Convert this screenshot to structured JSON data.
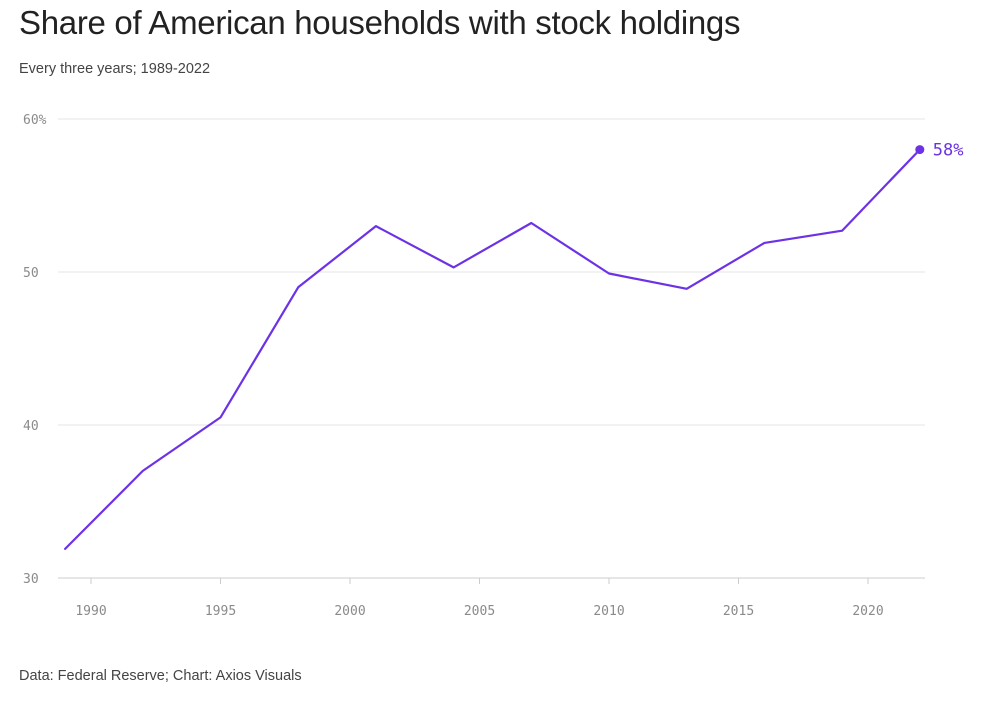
{
  "header": {
    "title": "Share of American households with stock holdings",
    "subtitle": "Every three years; 1989-2022"
  },
  "footer": {
    "source": "Data: Federal Reserve; Chart: Axios Visuals"
  },
  "colors": {
    "series": "#6c32e6",
    "grid": "#e6e6e6",
    "axis": "#cccccc",
    "tick_text": "#8a8a8a"
  },
  "chart_data": {
    "type": "line",
    "title": "Share of American households with stock holdings",
    "subtitle": "Every three years; 1989-2022",
    "xlabel": "",
    "ylabel": "",
    "xlim": [
      1988,
      2024
    ],
    "ylim": [
      30,
      60
    ],
    "x_ticks": [
      1990,
      1995,
      2000,
      2005,
      2010,
      2015,
      2020
    ],
    "x_tick_labels": [
      "1990",
      "1995",
      "2000",
      "2005",
      "2010",
      "2015",
      "2020"
    ],
    "y_ticks": [
      30,
      40,
      50,
      60
    ],
    "y_tick_labels": [
      "30",
      "40",
      "50",
      "60%"
    ],
    "grid": "horizontal",
    "legend": "none",
    "series": [
      {
        "x": [
          1989,
          1992,
          1995,
          1998,
          2001,
          2004,
          2007,
          2010,
          2013,
          2016,
          2019,
          2022
        ],
        "values": [
          31.9,
          37.0,
          40.5,
          49.0,
          53.0,
          50.3,
          53.2,
          49.9,
          48.9,
          51.9,
          52.7,
          58.0
        ]
      }
    ],
    "annotations": [
      {
        "x": 2022,
        "y": 58.0,
        "text": "58%"
      }
    ]
  }
}
